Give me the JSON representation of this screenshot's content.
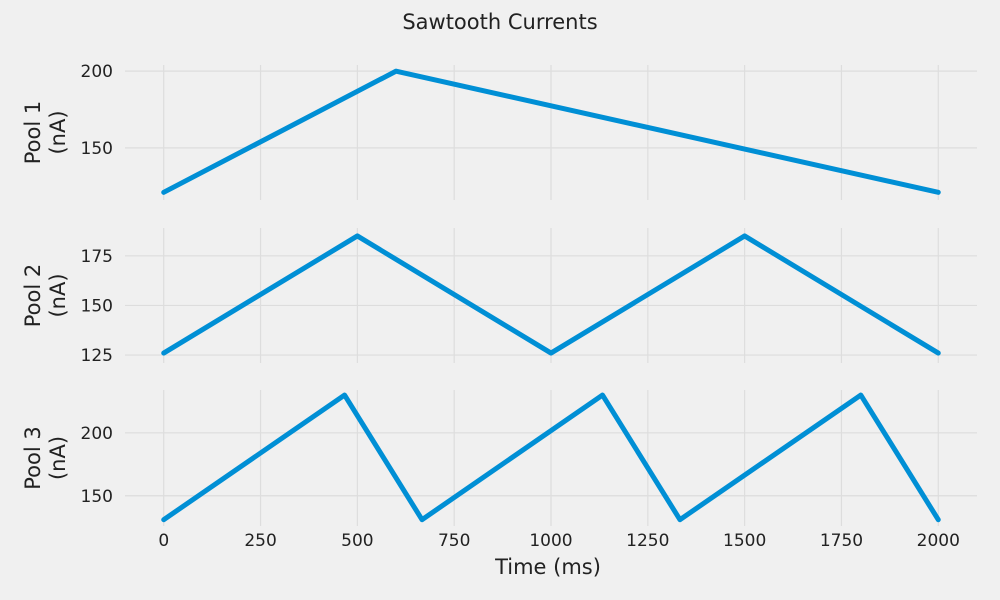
{
  "chart_data": {
    "type": "line",
    "title": "Sawtooth Currents",
    "xlabel": "Time (ms)",
    "xlim": [
      -100,
      2100
    ],
    "xticks": [
      0,
      250,
      500,
      750,
      1000,
      1250,
      1500,
      1750,
      2000
    ],
    "grid": true,
    "line_color": "#008fd5",
    "background": "#f0f0f0",
    "panels": [
      {
        "name": "Pool 1",
        "ylabel_lines": [
          "Pool 1",
          "(nA)"
        ],
        "ylim": [
          116,
          204
        ],
        "yticks": [
          150,
          200
        ],
        "x": [
          0,
          600,
          2000
        ],
        "y": [
          121,
          200,
          121
        ]
      },
      {
        "name": "Pool 2",
        "ylabel_lines": [
          "Pool 2",
          "(nA)"
        ],
        "ylim": [
          121,
          189
        ],
        "yticks": [
          125,
          150,
          175
        ],
        "x": [
          0,
          500,
          1000,
          1500,
          2000
        ],
        "y": [
          126,
          185,
          126,
          185,
          126
        ]
      },
      {
        "name": "Pool 3",
        "ylabel_lines": [
          "Pool 3",
          "(nA)"
        ],
        "ylim": [
          126,
          234
        ],
        "yticks": [
          150,
          200
        ],
        "x": [
          0,
          467,
          667,
          1133,
          1333,
          1800,
          2000
        ],
        "y": [
          131,
          230,
          131,
          230,
          131,
          230,
          131
        ]
      }
    ]
  }
}
